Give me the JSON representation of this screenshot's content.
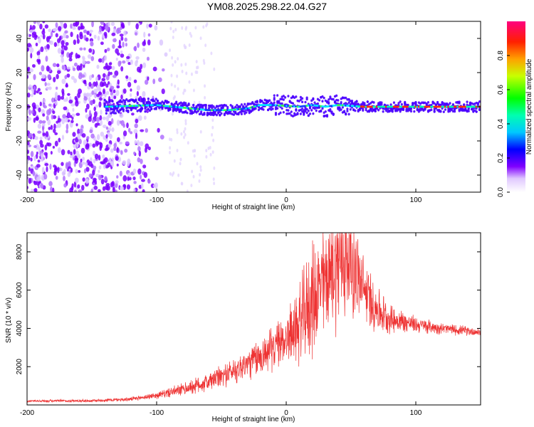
{
  "title": "YM08.2025.298.22.04.G27",
  "chart_data": [
    {
      "type": "heatmap",
      "name": "spectrogram",
      "xlabel": "Height of straight line (km)",
      "ylabel": "Frequency (Hz)",
      "xlim": [
        -200,
        150
      ],
      "ylim": [
        -50,
        50
      ],
      "xticks": [
        -200,
        -100,
        0,
        100
      ],
      "yticks": [
        -40,
        -20,
        0,
        20,
        40
      ],
      "ridge": [
        [
          -140,
          0
        ],
        [
          -120,
          0.5
        ],
        [
          -100,
          1
        ],
        [
          -80,
          -0.5
        ],
        [
          -60,
          -2
        ],
        [
          -45,
          -2
        ],
        [
          -30,
          -1
        ],
        [
          -20,
          1
        ],
        [
          -10,
          1
        ],
        [
          0,
          0.5
        ],
        [
          10,
          0
        ],
        [
          20,
          1
        ],
        [
          30,
          0
        ],
        [
          40,
          1
        ],
        [
          50,
          0.5
        ],
        [
          60,
          0
        ],
        [
          80,
          0
        ],
        [
          100,
          0
        ],
        [
          120,
          0
        ],
        [
          150,
          0
        ]
      ],
      "colorbar": {
        "label": "Normalized spectral amplitude",
        "ticks": [
          0.0,
          0.2,
          0.4,
          0.6,
          0.8
        ],
        "range": [
          0,
          1
        ]
      }
    },
    {
      "type": "line",
      "name": "snr",
      "xlabel": "Height of straight line (km)",
      "ylabel": "SNR (10 * v/v)",
      "xlim": [
        -200,
        150
      ],
      "ylim": [
        0,
        9000
      ],
      "xticks": [
        -200,
        -100,
        0,
        100
      ],
      "yticks": [
        2000,
        4000,
        6000,
        8000
      ],
      "color": "#ee3333",
      "envelope": [
        [
          -200,
          200,
          80
        ],
        [
          -150,
          220,
          100
        ],
        [
          -120,
          300,
          120
        ],
        [
          -100,
          500,
          200
        ],
        [
          -80,
          800,
          400
        ],
        [
          -60,
          1200,
          600
        ],
        [
          -40,
          1800,
          800
        ],
        [
          -20,
          2500,
          1200
        ],
        [
          0,
          3500,
          1500
        ],
        [
          10,
          4200,
          2500
        ],
        [
          20,
          5500,
          3500
        ],
        [
          30,
          6500,
          3500
        ],
        [
          40,
          7500,
          4000
        ],
        [
          50,
          7500,
          3500
        ],
        [
          60,
          6000,
          2000
        ],
        [
          70,
          5000,
          1500
        ],
        [
          80,
          4500,
          900
        ],
        [
          100,
          4200,
          500
        ],
        [
          120,
          4000,
          350
        ],
        [
          150,
          3800,
          250
        ]
      ]
    }
  ]
}
